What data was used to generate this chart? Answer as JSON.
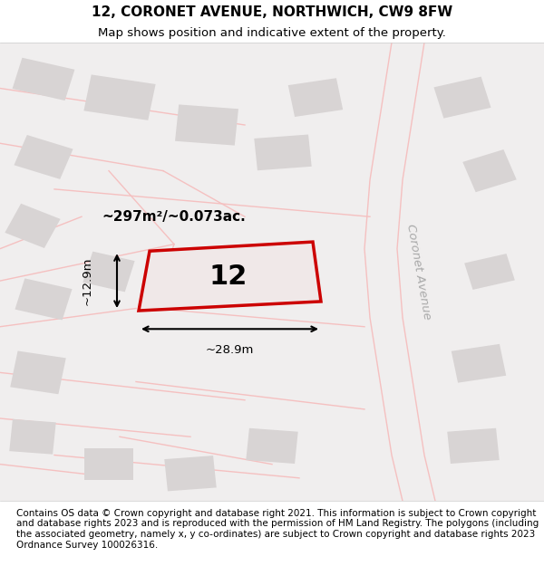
{
  "title_line1": "12, CORONET AVENUE, NORTHWICH, CW9 8FW",
  "title_line2": "Map shows position and indicative extent of the property.",
  "footer_text": "Contains OS data © Crown copyright and database right 2021. This information is subject to Crown copyright and database rights 2023 and is reproduced with the permission of HM Land Registry. The polygons (including the associated geometry, namely x, y co-ordinates) are subject to Crown copyright and database rights 2023 Ordnance Survey 100026316.",
  "area_label": "~297m²/~0.073ac.",
  "width_label": "~28.9m",
  "height_label": "~12.9m",
  "plot_number": "12",
  "bg_color": "#f0eeee",
  "map_bg": "#f0eeee",
  "plot_fill": "#f5f0f0",
  "plot_edge_color": "#cc0000",
  "road_color": "#f5c0c0",
  "building_color": "#d8d4d4",
  "street_label": "Coronet Avenue",
  "title_fontsize": 11,
  "subtitle_fontsize": 9.5,
  "footer_fontsize": 7.5
}
